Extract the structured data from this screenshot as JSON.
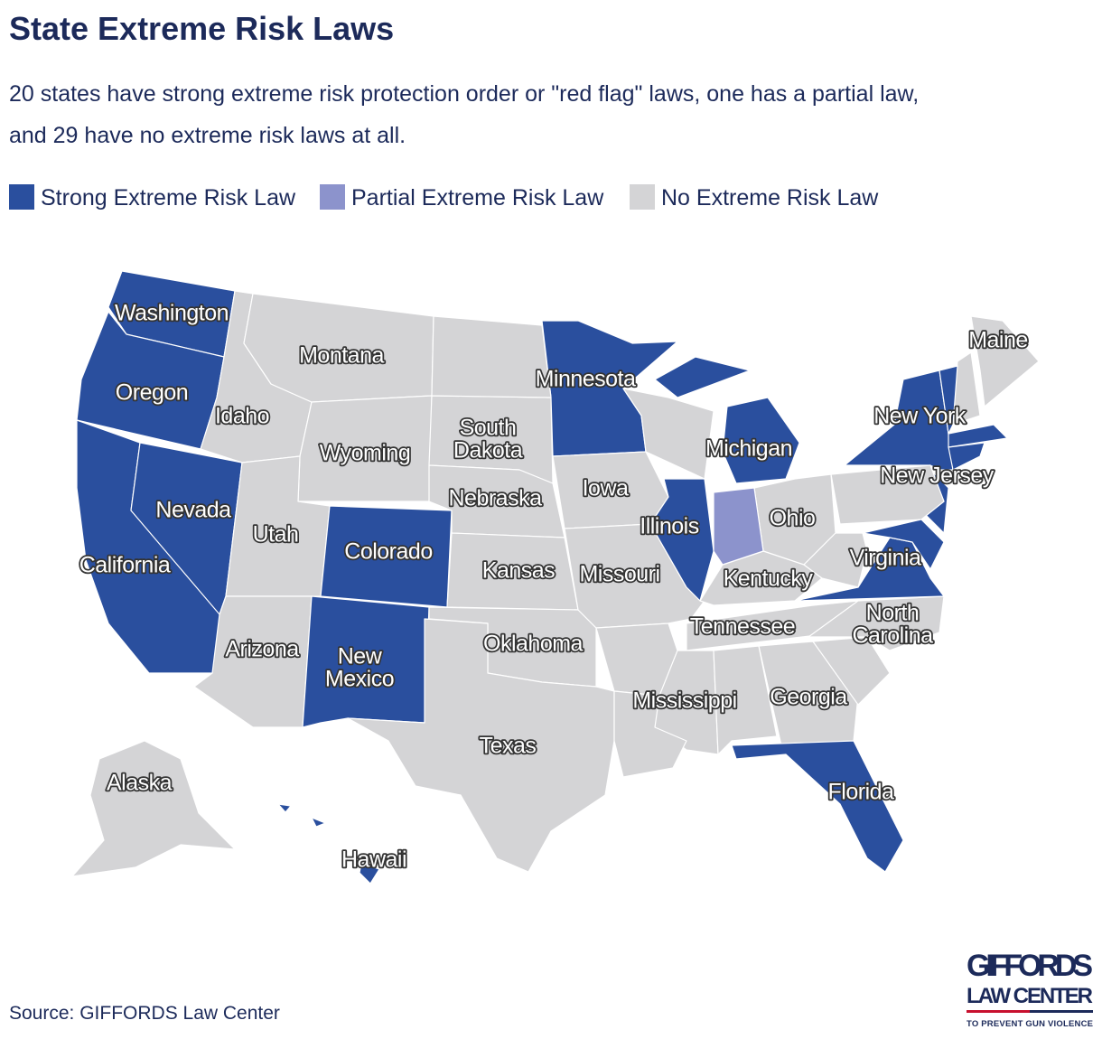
{
  "title": "State Extreme Risk Laws",
  "subtitle": [
    "20 states have strong extreme risk protection order or \"red flag\" laws, one has a partial law,",
    "and 29 have no extreme risk laws at all."
  ],
  "legend": [
    {
      "name": "Strong Extreme Risk Law",
      "color": "#2a4f9e"
    },
    {
      "name": "Partial Extreme Risk Law",
      "color": "#8c93cc"
    },
    {
      "name": "No Extreme Risk Law",
      "color": "#d4d4d6"
    }
  ],
  "states": [
    {
      "label": [
        "Washington"
      ],
      "law": "Strong Extreme Risk Law"
    },
    {
      "label": [
        "Oregon"
      ],
      "law": "Strong Extreme Risk Law"
    },
    {
      "label": [
        "California"
      ],
      "law": "Strong Extreme Risk Law"
    },
    {
      "label": [
        "Nevada"
      ],
      "law": "Strong Extreme Risk Law"
    },
    {
      "label": [
        "Idaho"
      ],
      "law": "No Extreme Risk Law"
    },
    {
      "label": [
        "Montana"
      ],
      "law": "No Extreme Risk Law"
    },
    {
      "label": [
        "Wyoming"
      ],
      "law": "No Extreme Risk Law"
    },
    {
      "label": [
        "Utah"
      ],
      "law": "No Extreme Risk Law"
    },
    {
      "label": [
        "Arizona"
      ],
      "law": "No Extreme Risk Law"
    },
    {
      "label": [
        "Colorado"
      ],
      "law": "Strong Extreme Risk Law"
    },
    {
      "label": [
        "New",
        "Mexico"
      ],
      "law": "Strong Extreme Risk Law"
    },
    {
      "label": [
        "South",
        "Dakota"
      ],
      "law": "No Extreme Risk Law"
    },
    {
      "label": [
        "Nebraska"
      ],
      "law": "No Extreme Risk Law"
    },
    {
      "label": [
        "Kansas"
      ],
      "law": "No Extreme Risk Law"
    },
    {
      "label": [
        "Oklahoma"
      ],
      "law": "No Extreme Risk Law"
    },
    {
      "label": [
        "Texas"
      ],
      "law": "No Extreme Risk Law"
    },
    {
      "label": [
        "Minnesota"
      ],
      "law": "Strong Extreme Risk Law"
    },
    {
      "label": [
        "Iowa"
      ],
      "law": "No Extreme Risk Law"
    },
    {
      "label": [
        "Missouri"
      ],
      "law": "No Extreme Risk Law"
    },
    {
      "label": [
        "Illinois"
      ],
      "law": "Strong Extreme Risk Law"
    },
    {
      "label": [
        "Michigan"
      ],
      "law": "Strong Extreme Risk Law"
    },
    {
      "label": [
        "Ohio"
      ],
      "law": "No Extreme Risk Law"
    },
    {
      "label": [
        "Kentucky"
      ],
      "law": "No Extreme Risk Law"
    },
    {
      "label": [
        "Tennessee"
      ],
      "law": "No Extreme Risk Law"
    },
    {
      "label": [
        "Mississippi"
      ],
      "law": "No Extreme Risk Law"
    },
    {
      "label": [
        "Georgia"
      ],
      "law": "No Extreme Risk Law"
    },
    {
      "label": [
        "Florida"
      ],
      "law": "Strong Extreme Risk Law"
    },
    {
      "label": [
        "North",
        "Carolina"
      ],
      "law": "No Extreme Risk Law"
    },
    {
      "label": [
        "Virginia"
      ],
      "law": "Strong Extreme Risk Law"
    },
    {
      "label": [
        "New York"
      ],
      "law": "Strong Extreme Risk Law"
    },
    {
      "label": [
        "New Jersey"
      ],
      "law": "Strong Extreme Risk Law"
    },
    {
      "label": [
        "Maine"
      ],
      "law": "No Extreme Risk Law"
    },
    {
      "label": [
        "Alaska"
      ],
      "law": "No Extreme Risk Law"
    },
    {
      "label": [
        "Hawaii"
      ],
      "law": "Strong Extreme Risk Law"
    }
  ],
  "source": "Source: GIFFORDS Law Center",
  "logo": {
    "name": "GIFFORDS",
    "line2": "LAW CENTER",
    "tagline": "TO PREVENT GUN VIOLENCE"
  }
}
